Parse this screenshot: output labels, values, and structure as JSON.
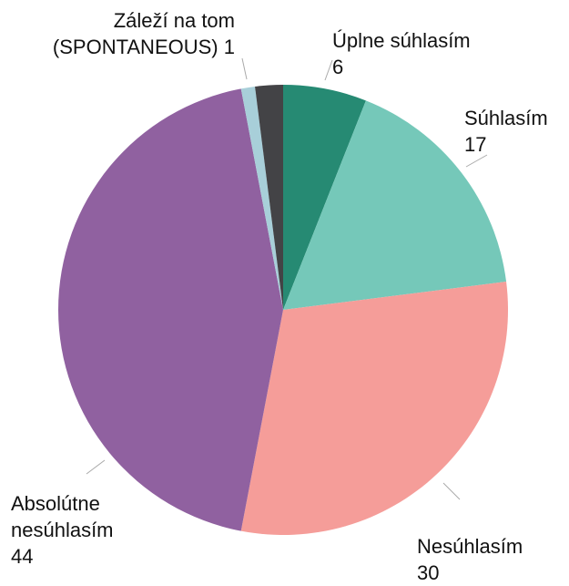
{
  "chart_data": {
    "type": "pie",
    "categories": [
      "Úplne súhlasím",
      "Súhlasím",
      "Nesúhlasím",
      "Absolútne nesúhlasím",
      "Záleží na tom (SPONTANEOUS)",
      null
    ],
    "values": [
      6,
      17,
      30,
      44,
      1,
      2
    ],
    "colors": [
      "#268a73",
      "#75c8b9",
      "#f59d99",
      "#9061a0",
      "#a8cfd9",
      "#434346"
    ]
  }
}
